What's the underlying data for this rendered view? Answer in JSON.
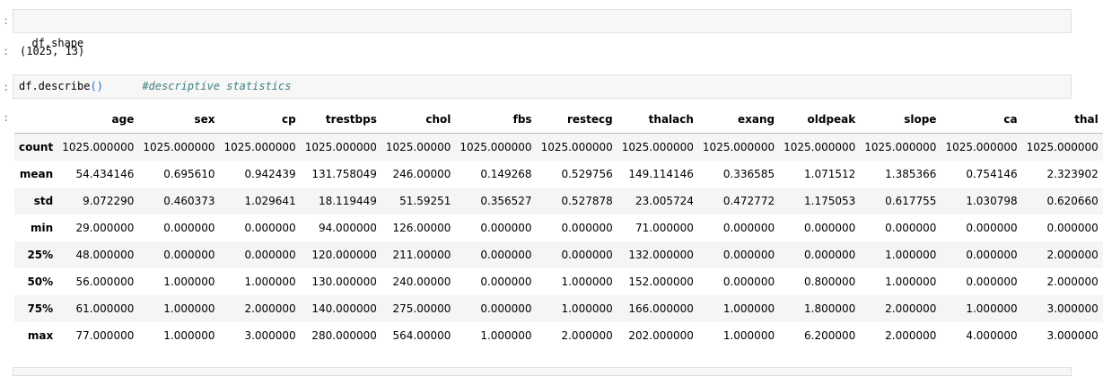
{
  "prompt_char": ":",
  "cells": [
    {
      "code": "df.shape",
      "output": "(1025, 13)"
    },
    {
      "code_name": "df.describe",
      "code_open_paren": "(",
      "code_close_paren": ")",
      "comment": "#descriptive statistics"
    }
  ],
  "table": {
    "columns": [
      "age",
      "sex",
      "cp",
      "trestbps",
      "chol",
      "fbs",
      "restecg",
      "thalach",
      "exang",
      "oldpeak",
      "slope",
      "ca",
      "thal"
    ],
    "rows": [
      {
        "index": "count",
        "values": [
          "1025.000000",
          "1025.000000",
          "1025.000000",
          "1025.000000",
          "1025.00000",
          "1025.000000",
          "1025.000000",
          "1025.000000",
          "1025.000000",
          "1025.000000",
          "1025.000000",
          "1025.000000",
          "1025.000000"
        ]
      },
      {
        "index": "mean",
        "values": [
          "54.434146",
          "0.695610",
          "0.942439",
          "131.758049",
          "246.00000",
          "0.149268",
          "0.529756",
          "149.114146",
          "0.336585",
          "1.071512",
          "1.385366",
          "0.754146",
          "2.323902"
        ]
      },
      {
        "index": "std",
        "values": [
          "9.072290",
          "0.460373",
          "1.029641",
          "18.119449",
          "51.59251",
          "0.356527",
          "0.527878",
          "23.005724",
          "0.472772",
          "1.175053",
          "0.617755",
          "1.030798",
          "0.620660"
        ]
      },
      {
        "index": "min",
        "values": [
          "29.000000",
          "0.000000",
          "0.000000",
          "94.000000",
          "126.00000",
          "0.000000",
          "0.000000",
          "71.000000",
          "0.000000",
          "0.000000",
          "0.000000",
          "0.000000",
          "0.000000"
        ]
      },
      {
        "index": "25%",
        "values": [
          "48.000000",
          "0.000000",
          "0.000000",
          "120.000000",
          "211.00000",
          "0.000000",
          "0.000000",
          "132.000000",
          "0.000000",
          "0.000000",
          "1.000000",
          "0.000000",
          "2.000000"
        ]
      },
      {
        "index": "50%",
        "values": [
          "56.000000",
          "1.000000",
          "1.000000",
          "130.000000",
          "240.00000",
          "0.000000",
          "1.000000",
          "152.000000",
          "0.000000",
          "0.800000",
          "1.000000",
          "0.000000",
          "2.000000"
        ]
      },
      {
        "index": "75%",
        "values": [
          "61.000000",
          "1.000000",
          "2.000000",
          "140.000000",
          "275.00000",
          "0.000000",
          "1.000000",
          "166.000000",
          "1.000000",
          "1.800000",
          "2.000000",
          "1.000000",
          "3.000000"
        ]
      },
      {
        "index": "max",
        "values": [
          "77.000000",
          "1.000000",
          "3.000000",
          "280.000000",
          "564.00000",
          "1.000000",
          "2.000000",
          "202.000000",
          "1.000000",
          "6.200000",
          "2.000000",
          "4.000000",
          "3.000000"
        ]
      }
    ]
  }
}
